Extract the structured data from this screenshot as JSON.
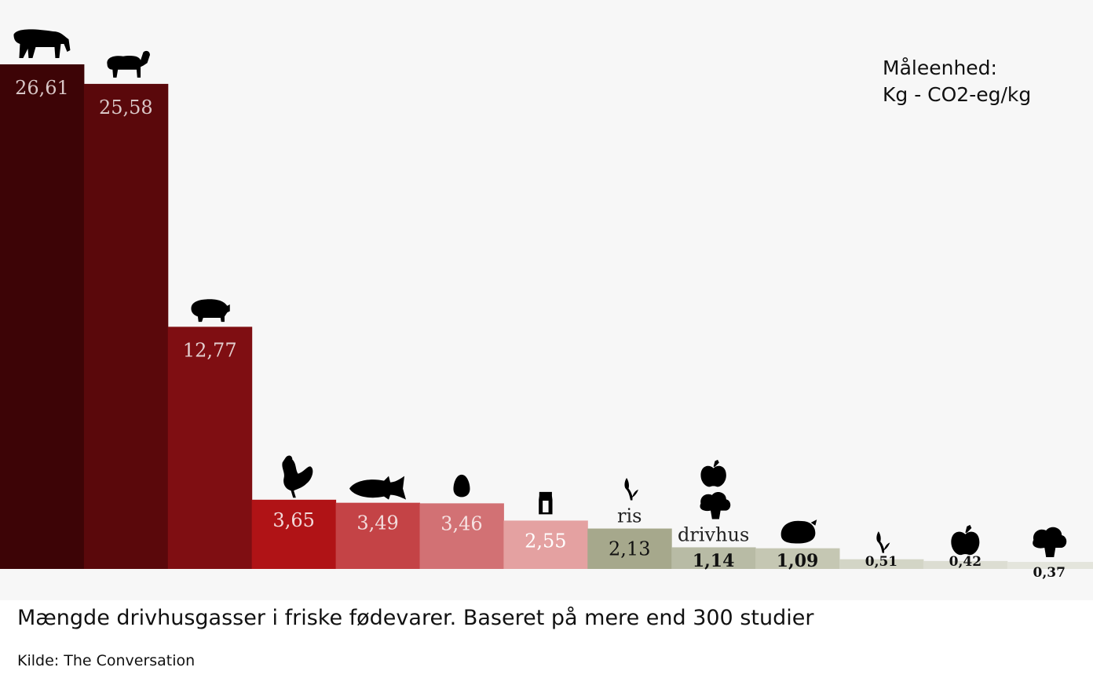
{
  "chart_data": {
    "type": "bar",
    "categories": [
      "oksekød",
      "lam",
      "svinekød",
      "kylling",
      "fisk",
      "æg",
      "mælk",
      "ris",
      "drivhus",
      "kartofler",
      "rodfrugter",
      "æble",
      "broccoli"
    ],
    "values": [
      26.61,
      25.58,
      12.77,
      3.65,
      3.49,
      3.46,
      2.55,
      2.13,
      1.14,
      1.09,
      0.51,
      0.42,
      0.37
    ],
    "value_labels": [
      "26,61",
      "25,58",
      "12,77",
      "3,65",
      "3,49",
      "3,46",
      "2,55",
      "2,13",
      "1,14",
      "1,09",
      "0,51",
      "0,42",
      "0,37"
    ],
    "bar_texts": [
      "",
      "",
      "",
      "",
      "",
      "",
      "",
      "ris",
      "drivhus",
      "",
      "",
      "",
      ""
    ],
    "icons": [
      "cow-icon",
      "sheep-icon",
      "pig-icon",
      "chicken-icon",
      "fish-icon",
      "egg-icon",
      "milk-carton-icon",
      "sprout-icon",
      "apple-broccoli-icon",
      "potato-icon",
      "sprout-icon",
      "apple-icon",
      "broccoli-icon"
    ],
    "colors": [
      "#3d0406",
      "#5a080b",
      "#7f0e12",
      "#b01316",
      "#c44346",
      "#d27174",
      "#e4a1a1",
      "#a6a88c",
      "#b8bba5",
      "#c5c7b3",
      "#d3d5c6",
      "#dcddd2",
      "#e4e5dc"
    ],
    "label_colors": [
      "#d8c6c6",
      "#d8c6c6",
      "#e3cfcf",
      "#f2dada",
      "#f2dada",
      "#f6e2e2",
      "#ffffff",
      "#111111",
      "#111111",
      "#111111",
      "#111111",
      "#111111",
      "#111111"
    ],
    "ylim": [
      0,
      26.61
    ],
    "grid": false
  },
  "unit_label": {
    "line1": "Måleenhed:",
    "line2": "Kg - CO2-eg/kg"
  },
  "caption": "Mængde drivhusgasser i friske fødevarer. Baseret på mere end 300 studier",
  "source": "Kilde: The Conversation"
}
